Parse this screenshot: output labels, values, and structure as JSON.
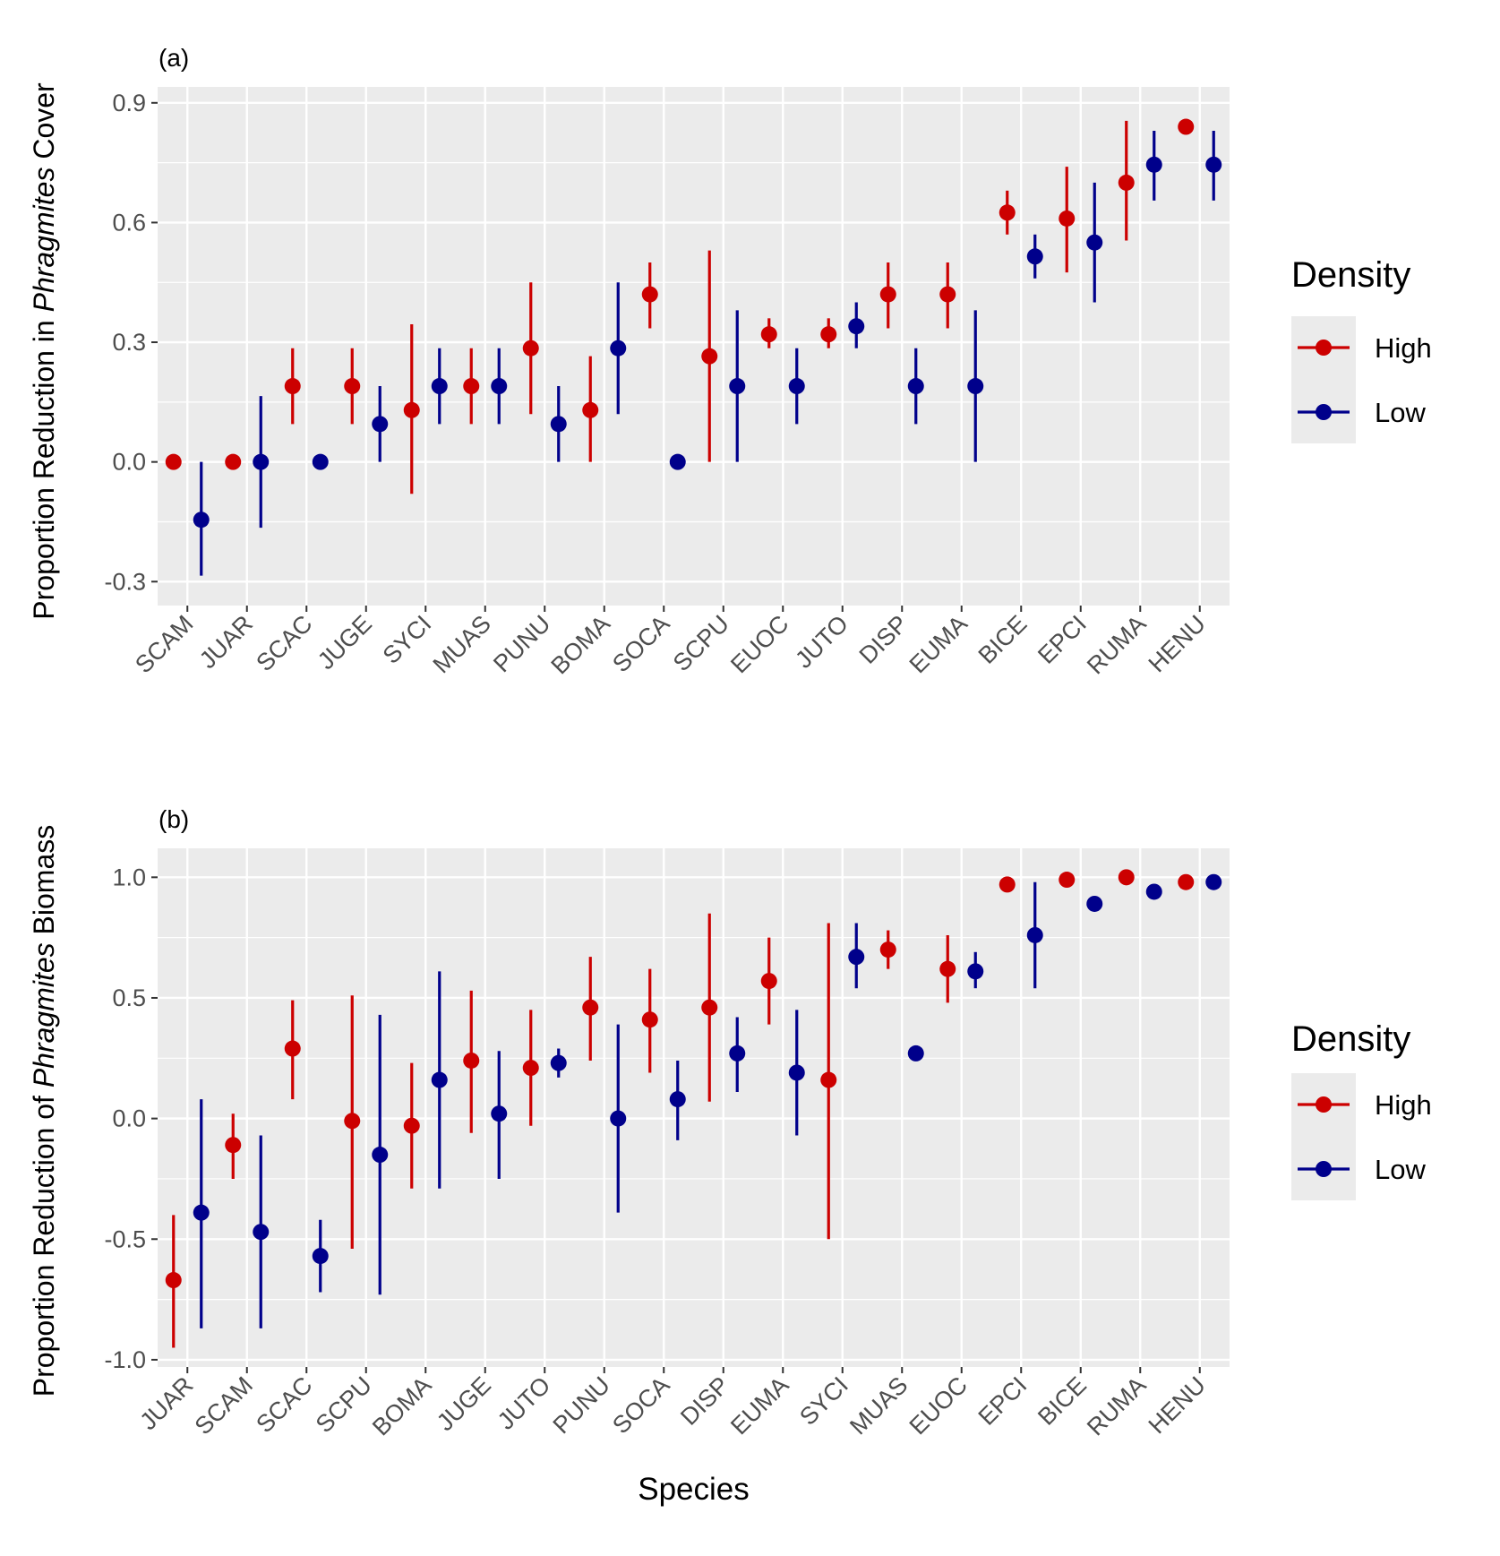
{
  "chart_data": [
    {
      "type": "scatter",
      "tag": "(a)",
      "ylabel_parts": [
        "Proportion Reduction in ",
        "Phragmites",
        " Cover"
      ],
      "xlabel": "",
      "ylim": [
        -0.36,
        0.94
      ],
      "yticks": [
        -0.3,
        0.0,
        0.3,
        0.6,
        0.9
      ],
      "ytick_labels": [
        "-0.3",
        "0.0",
        "0.3",
        "0.6",
        "0.9"
      ],
      "categories": [
        "SCAM",
        "JUAR",
        "SCAC",
        "JUGE",
        "SYCI",
        "MUAS",
        "PUNU",
        "BOMA",
        "SOCA",
        "SCPU",
        "EUOC",
        "JUTO",
        "DISP",
        "EUMA",
        "BICE",
        "EPCI",
        "RUMA",
        "HENU"
      ],
      "series": [
        {
          "name": "High",
          "color": "#cc0000",
          "points": [
            {
              "y": 0.0,
              "lo": null,
              "hi": null
            },
            {
              "y": 0.0,
              "lo": null,
              "hi": null
            },
            {
              "y": 0.19,
              "lo": 0.095,
              "hi": 0.285
            },
            {
              "y": 0.19,
              "lo": 0.095,
              "hi": 0.285
            },
            {
              "y": 0.13,
              "lo": -0.08,
              "hi": 0.345
            },
            {
              "y": 0.19,
              "lo": 0.095,
              "hi": 0.285
            },
            {
              "y": 0.285,
              "lo": 0.12,
              "hi": 0.45
            },
            {
              "y": 0.13,
              "lo": 0.0,
              "hi": 0.265
            },
            {
              "y": 0.42,
              "lo": 0.335,
              "hi": 0.5
            },
            {
              "y": 0.265,
              "lo": 0.0,
              "hi": 0.53
            },
            {
              "y": 0.32,
              "lo": 0.285,
              "hi": 0.36
            },
            {
              "y": 0.32,
              "lo": 0.285,
              "hi": 0.36
            },
            {
              "y": 0.42,
              "lo": 0.335,
              "hi": 0.5
            },
            {
              "y": 0.42,
              "lo": 0.335,
              "hi": 0.5
            },
            {
              "y": 0.625,
              "lo": 0.57,
              "hi": 0.68
            },
            {
              "y": 0.61,
              "lo": 0.475,
              "hi": 0.74
            },
            {
              "y": 0.7,
              "lo": 0.555,
              "hi": 0.855
            },
            {
              "y": 0.84,
              "lo": null,
              "hi": null
            }
          ]
        },
        {
          "name": "Low",
          "color": "#00008b",
          "points": [
            {
              "y": -0.145,
              "lo": -0.285,
              "hi": 0.0
            },
            {
              "y": 0.0,
              "lo": -0.165,
              "hi": 0.165
            },
            {
              "y": 0.0,
              "lo": null,
              "hi": null
            },
            {
              "y": 0.095,
              "lo": 0.0,
              "hi": 0.19
            },
            {
              "y": 0.19,
              "lo": 0.095,
              "hi": 0.285
            },
            {
              "y": 0.19,
              "lo": 0.095,
              "hi": 0.285
            },
            {
              "y": 0.095,
              "lo": 0.0,
              "hi": 0.19
            },
            {
              "y": 0.285,
              "lo": 0.12,
              "hi": 0.45
            },
            {
              "y": 0.0,
              "lo": null,
              "hi": null
            },
            {
              "y": 0.19,
              "lo": 0.0,
              "hi": 0.38
            },
            {
              "y": 0.19,
              "lo": 0.095,
              "hi": 0.285
            },
            {
              "y": 0.34,
              "lo": 0.285,
              "hi": 0.4
            },
            {
              "y": 0.19,
              "lo": 0.095,
              "hi": 0.285
            },
            {
              "y": 0.19,
              "lo": 0.0,
              "hi": 0.38
            },
            {
              "y": 0.515,
              "lo": 0.46,
              "hi": 0.57
            },
            {
              "y": 0.55,
              "lo": 0.4,
              "hi": 0.7
            },
            {
              "y": 0.745,
              "lo": 0.655,
              "hi": 0.83
            },
            {
              "y": 0.745,
              "lo": 0.655,
              "hi": 0.83
            }
          ]
        }
      ],
      "legend": {
        "title": "Density",
        "entries": [
          "High",
          "Low"
        ],
        "placement": "right"
      },
      "grid": true
    },
    {
      "type": "scatter",
      "tag": "(b)",
      "ylabel_parts": [
        "Proportion Reduction of ",
        "Phragmites",
        " Biomass"
      ],
      "xlabel": "Species",
      "ylim": [
        -1.03,
        1.12
      ],
      "yticks": [
        -1.0,
        -0.5,
        0.0,
        0.5,
        1.0
      ],
      "ytick_labels": [
        "-1.0",
        "-0.5",
        "0.0",
        "0.5",
        "1.0"
      ],
      "categories": [
        "JUAR",
        "SCAM",
        "SCAC",
        "SCPU",
        "BOMA",
        "JUGE",
        "JUTO",
        "PUNU",
        "SOCA",
        "DISP",
        "EUMA",
        "SYCI",
        "MUAS",
        "EUOC",
        "EPCI",
        "BICE",
        "RUMA",
        "HENU"
      ],
      "series": [
        {
          "name": "High",
          "color": "#cc0000",
          "points": [
            {
              "y": -0.67,
              "lo": -0.95,
              "hi": -0.4
            },
            {
              "y": -0.11,
              "lo": -0.25,
              "hi": 0.02
            },
            {
              "y": 0.29,
              "lo": 0.08,
              "hi": 0.49
            },
            {
              "y": -0.01,
              "lo": -0.54,
              "hi": 0.51
            },
            {
              "y": -0.03,
              "lo": -0.29,
              "hi": 0.23
            },
            {
              "y": 0.24,
              "lo": -0.06,
              "hi": 0.53
            },
            {
              "y": 0.21,
              "lo": -0.03,
              "hi": 0.45
            },
            {
              "y": 0.46,
              "lo": 0.24,
              "hi": 0.67
            },
            {
              "y": 0.41,
              "lo": 0.19,
              "hi": 0.62
            },
            {
              "y": 0.46,
              "lo": 0.07,
              "hi": 0.85
            },
            {
              "y": 0.57,
              "lo": 0.39,
              "hi": 0.75
            },
            {
              "y": 0.16,
              "lo": -0.5,
              "hi": 0.81
            },
            {
              "y": 0.7,
              "lo": 0.62,
              "hi": 0.78
            },
            {
              "y": 0.62,
              "lo": 0.48,
              "hi": 0.76
            },
            {
              "y": 0.97,
              "lo": null,
              "hi": null
            },
            {
              "y": 0.99,
              "lo": null,
              "hi": null
            },
            {
              "y": 1.0,
              "lo": null,
              "hi": null
            },
            {
              "y": 0.98,
              "lo": null,
              "hi": null
            }
          ]
        },
        {
          "name": "Low",
          "color": "#00008b",
          "points": [
            {
              "y": -0.39,
              "lo": -0.87,
              "hi": 0.08
            },
            {
              "y": -0.47,
              "lo": -0.87,
              "hi": -0.07
            },
            {
              "y": -0.57,
              "lo": -0.72,
              "hi": -0.42
            },
            {
              "y": -0.15,
              "lo": -0.73,
              "hi": 0.43
            },
            {
              "y": 0.16,
              "lo": -0.29,
              "hi": 0.61
            },
            {
              "y": 0.02,
              "lo": -0.25,
              "hi": 0.28
            },
            {
              "y": 0.23,
              "lo": 0.17,
              "hi": 0.29
            },
            {
              "y": 0.0,
              "lo": -0.39,
              "hi": 0.39
            },
            {
              "y": 0.08,
              "lo": -0.09,
              "hi": 0.24
            },
            {
              "y": 0.27,
              "lo": 0.11,
              "hi": 0.42
            },
            {
              "y": 0.19,
              "lo": -0.07,
              "hi": 0.45
            },
            {
              "y": 0.67,
              "lo": 0.54,
              "hi": 0.81
            },
            {
              "y": 0.27,
              "lo": 0.25,
              "hi": 0.28
            },
            {
              "y": 0.61,
              "lo": 0.54,
              "hi": 0.69
            },
            {
              "y": 0.76,
              "lo": 0.54,
              "hi": 0.98
            },
            {
              "y": 0.89,
              "lo": null,
              "hi": null
            },
            {
              "y": 0.94,
              "lo": null,
              "hi": null
            },
            {
              "y": 0.98,
              "lo": null,
              "hi": null
            }
          ]
        }
      ],
      "legend": {
        "title": "Density",
        "entries": [
          "High",
          "Low"
        ],
        "placement": "right"
      },
      "grid": true
    }
  ]
}
